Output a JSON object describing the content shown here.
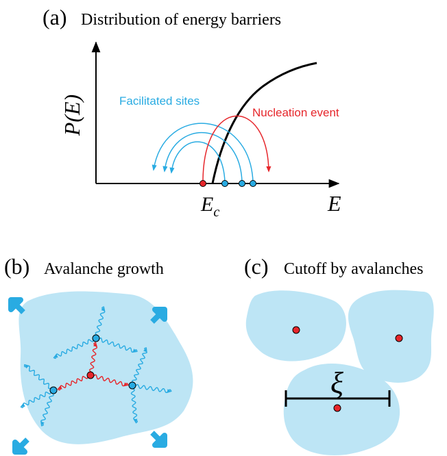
{
  "panels": {
    "a": {
      "label": "(a)",
      "title": "Distribution of energy barriers",
      "y_label": "P(E)",
      "x_label": "E",
      "threshold_label": "E",
      "threshold_subscript": "c",
      "facilitated_label": "Facilitated sites",
      "nucleation_label": "Nucleation event"
    },
    "b": {
      "label": "(b)",
      "title": "Avalanche growth"
    },
    "c": {
      "label": "(c)",
      "title": "Cutoff by avalanches",
      "length_symbol": "ξ"
    }
  },
  "colors": {
    "blue": "#29abe2",
    "light_blue": "#bde5f5",
    "red": "#e6262b",
    "black": "#000000"
  }
}
